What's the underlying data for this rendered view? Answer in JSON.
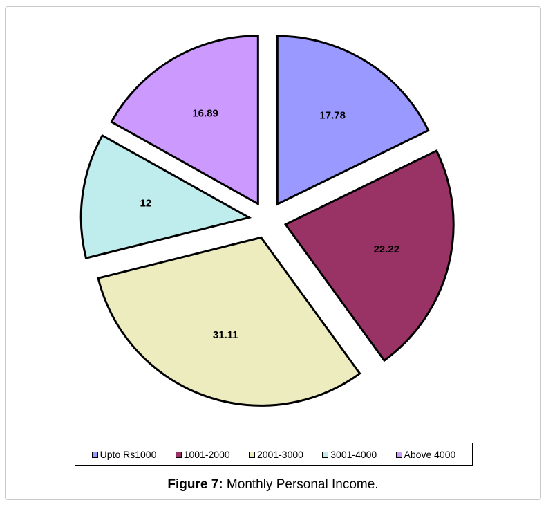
{
  "chart_data": {
    "type": "pie",
    "exploded": true,
    "categories": [
      "Upto Rs1000",
      "1001-2000",
      "2001-3000",
      "3001-4000",
      "Above 4000"
    ],
    "values": [
      17.78,
      22.22,
      31.11,
      12,
      16.89
    ],
    "value_labels": [
      "17.78",
      "22.22",
      "31.11",
      "12",
      "16.89"
    ],
    "colors": [
      "#9999ff",
      "#993366",
      "#ececbf",
      "#bfecec",
      "#cc99ff"
    ],
    "legend_position": "bottom"
  },
  "caption": {
    "figure_label": "Figure 7:",
    "title": " Monthly Personal Income."
  }
}
